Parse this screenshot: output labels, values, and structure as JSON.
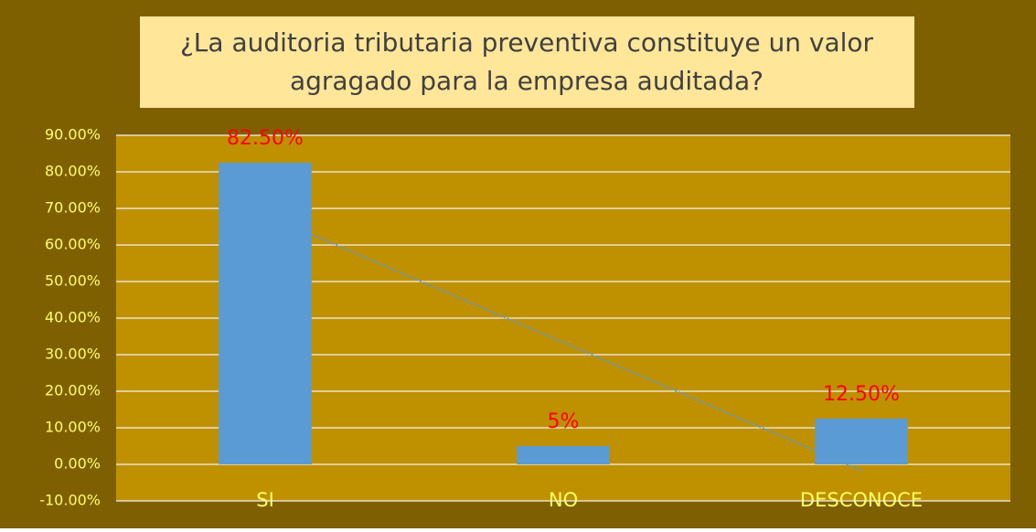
{
  "chart_data": {
    "type": "bar",
    "title": "¿La auditoria tributaria preventiva constituye un valor agragado para la empresa auditada?",
    "categories": [
      "SI",
      "NO",
      "DESCONOCE"
    ],
    "values": [
      82.5,
      5,
      12.5
    ],
    "value_labels": [
      "82.50%",
      "5%",
      "12.50%"
    ],
    "color": "#5b9bd5",
    "ylim": [
      -10,
      90
    ],
    "yticks": [
      {
        "value": -10,
        "label": "-10.00%"
      },
      {
        "value": 0,
        "label": "0.00%"
      },
      {
        "value": 10,
        "label": "10.00%"
      },
      {
        "value": 20,
        "label": "20.00%"
      },
      {
        "value": 30,
        "label": "30.00%"
      },
      {
        "value": 40,
        "label": "40.00%"
      },
      {
        "value": 50,
        "label": "50.00%"
      },
      {
        "value": 60,
        "label": "60.00%"
      },
      {
        "value": 70,
        "label": "70.00%"
      },
      {
        "value": 80,
        "label": "80.00%"
      },
      {
        "value": 90,
        "label": "90.00%"
      }
    ],
    "grid": true,
    "trendline": "linear"
  }
}
